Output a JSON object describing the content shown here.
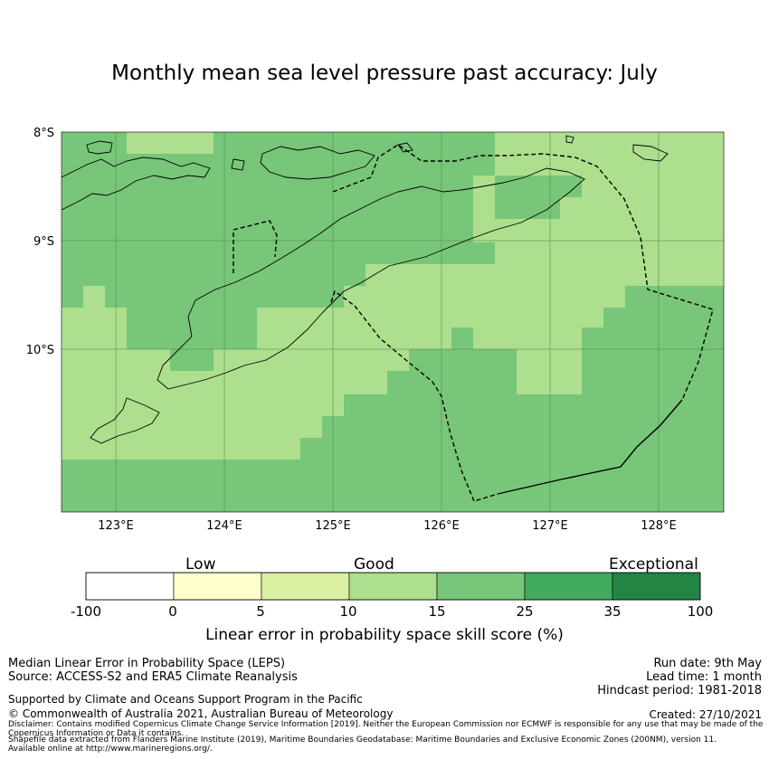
{
  "title": "Monthly mean sea level pressure past accuracy: July",
  "map": {
    "lat_labels": [
      "8°S",
      "9°S",
      "10°S"
    ],
    "lon_labels": [
      "123°E",
      "124°E",
      "125°E",
      "126°E",
      "127°E",
      "128°E"
    ],
    "colors": {
      "good_light": "#addf8e",
      "good_mid": "#78c679",
      "land_outline": "#000000",
      "gridline": "#4a8a4a"
    }
  },
  "colorbar": {
    "categories": [
      "Low",
      "Good",
      "Exceptional"
    ],
    "ticks": [
      "-100",
      "0",
      "5",
      "10",
      "15",
      "25",
      "35",
      "100"
    ],
    "colors": [
      "#ffffff",
      "#ffffcc",
      "#d9f0a3",
      "#addf8e",
      "#78c679",
      "#41ab5d",
      "#238443"
    ],
    "label": "Linear error in probability space skill score (%)"
  },
  "footer": {
    "left_line1": "Median Linear Error in Probability Space (LEPS)",
    "left_line2": "Source: ACCESS-S2 and ERA5 Climate Reanalysis",
    "support": "Supported by Climate and Oceans Support Program in the Pacific",
    "copyright": "© Commonwealth of Australia 2021, Australian Bureau of Meteorology",
    "run_date": "Run date: 9th May",
    "lead_time": "Lead time: 1 month",
    "hindcast": "Hindcast period: 1981-2018",
    "created": "Created: 27/10/2021",
    "disclaimer": "Disclaimer: Contains modified Copernicus Climate Change Service Information [2019]. Neither the European Commission nor ECMWF is responsible for any use that may be made of the Copernicus Information or Data it contains.",
    "shapefile": "Shapefile data extracted from Flanders Marine Institute (2019), Maritime Boundaries Geodatabase: Maritime Boundaries and Exclusive Economic Zones (200NM), version 11. Available online at http://www.marineregions.org/."
  }
}
